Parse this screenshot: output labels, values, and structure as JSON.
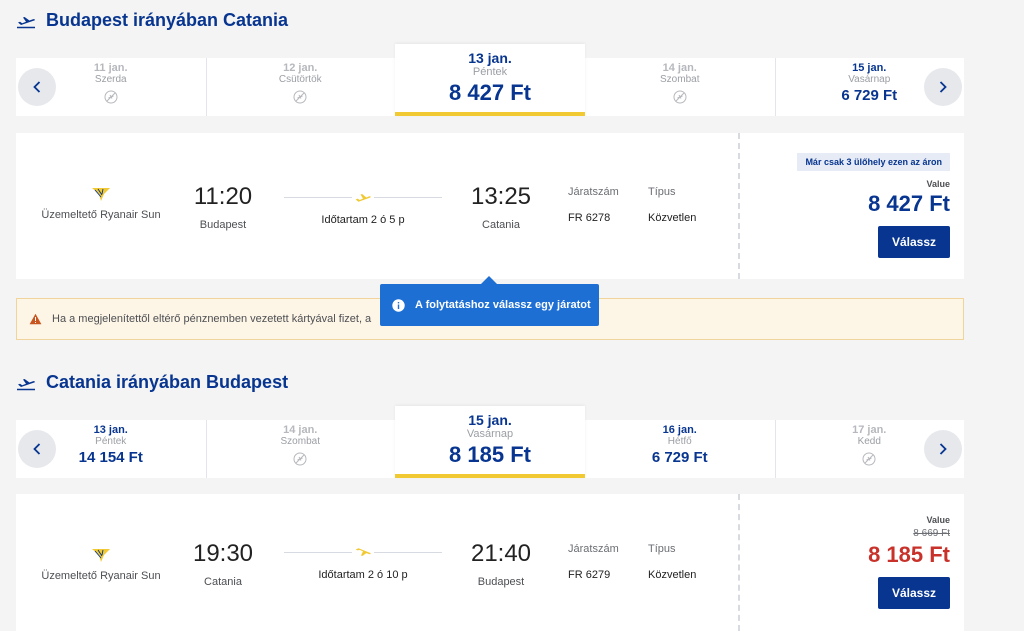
{
  "outbound": {
    "title": "Budapest irányában Catania",
    "days": [
      {
        "date": "11 jan.",
        "weekday": "Szerda",
        "price": null
      },
      {
        "date": "12 jan.",
        "weekday": "Csütörtök",
        "price": null
      },
      {
        "date": "13 jan.",
        "weekday": "Péntek",
        "price": "8 427 Ft"
      },
      {
        "date": "14 jan.",
        "weekday": "Szombat",
        "price": null
      },
      {
        "date": "15 jan.",
        "weekday": "Vasárnap",
        "price": "6 729 Ft"
      }
    ],
    "flight": {
      "operator": "Üzemeltető Ryanair Sun",
      "dep_time": "11:20",
      "dep_city": "Budapest",
      "duration": "Időtartam 2 ó 5 p",
      "arr_time": "13:25",
      "arr_city": "Catania",
      "flight_no_label": "Járatszám",
      "flight_no": "FR 6278",
      "type_label": "Típus",
      "type": "Közvetlen",
      "seats_badge": "Már csak 3 ülőhely ezen az áron",
      "fare_label": "Value",
      "price": "8 427 Ft",
      "select_label": "Válassz"
    }
  },
  "warning": {
    "text": "Ha a megjelenítettől eltérő pénznemben vezetett kártyával fizet, a"
  },
  "tooltip": {
    "text": "A folytatáshoz válassz egy járatot"
  },
  "return": {
    "title": "Catania irányában Budapest",
    "days": [
      {
        "date": "13 jan.",
        "weekday": "Péntek",
        "price": "14 154 Ft"
      },
      {
        "date": "14 jan.",
        "weekday": "Szombat",
        "price": null
      },
      {
        "date": "15 jan.",
        "weekday": "Vasárnap",
        "price": "8 185 Ft"
      },
      {
        "date": "16 jan.",
        "weekday": "Hétfő",
        "price": "6 729 Ft"
      },
      {
        "date": "17 jan.",
        "weekday": "Kedd",
        "price": null
      }
    ],
    "flight": {
      "operator": "Üzemeltető Ryanair Sun",
      "dep_time": "19:30",
      "dep_city": "Catania",
      "duration": "Időtartam 2 ó 10 p",
      "arr_time": "21:40",
      "arr_city": "Budapest",
      "flight_no_label": "Járatszám",
      "flight_no": "FR 6279",
      "type_label": "Típus",
      "type": "Közvetlen",
      "fare_label": "Value",
      "old_price": "8 669 Ft",
      "price": "8 185 Ft",
      "select_label": "Válassz"
    }
  },
  "colors": {
    "brand": "#073590",
    "highlight": "#f1c933",
    "sale": "#c8322a",
    "tooltip": "#1e6fd4"
  }
}
